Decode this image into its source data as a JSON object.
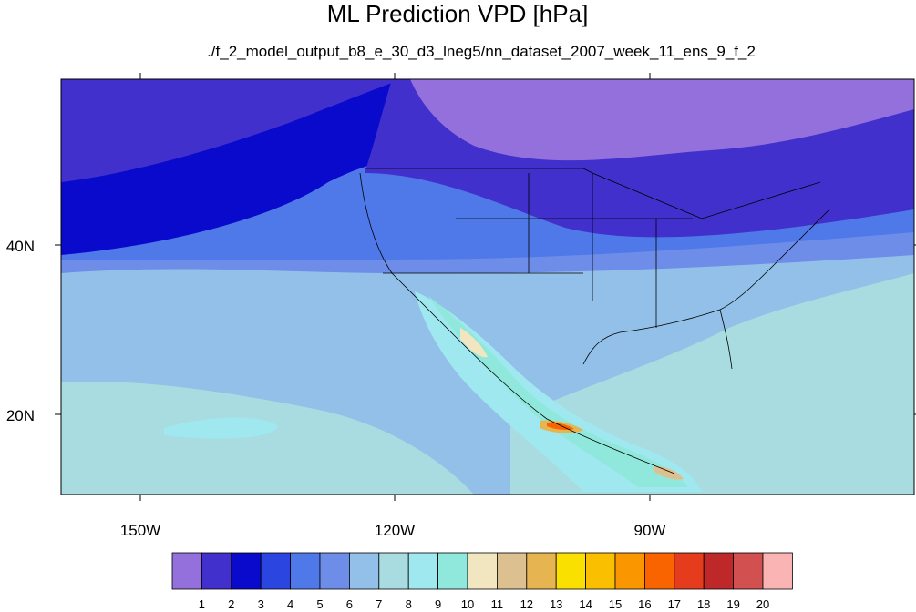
{
  "title": "ML Prediction VPD [hPa]",
  "subtitle": "./f_2_model_output_b8_e_30_d3_lneg5/nn_dataset_2007_week_11_ens_9_f_2",
  "axes": {
    "lat_labels": [
      "40N",
      "20N"
    ],
    "lon_labels": [
      "150W",
      "120W",
      "90W"
    ]
  },
  "colorbar": {
    "colors": [
      "#9370db",
      "#4130cc",
      "#0a0acc",
      "#2b45e0",
      "#4f79e8",
      "#6d8de8",
      "#93c0e8",
      "#a8dce0",
      "#a0e8ef",
      "#90e8dc",
      "#f2e6c0",
      "#dcc090",
      "#e6b450",
      "#fae000",
      "#fac000",
      "#fa9600",
      "#fa6400",
      "#e63c1e",
      "#be2828",
      "#d25050",
      "#fab4b4"
    ],
    "labels": [
      "1",
      "2",
      "3",
      "4",
      "5",
      "6",
      "7",
      "8",
      "9",
      "10",
      "11",
      "12",
      "13",
      "14",
      "15",
      "16",
      "17",
      "18",
      "19",
      "20"
    ]
  }
}
